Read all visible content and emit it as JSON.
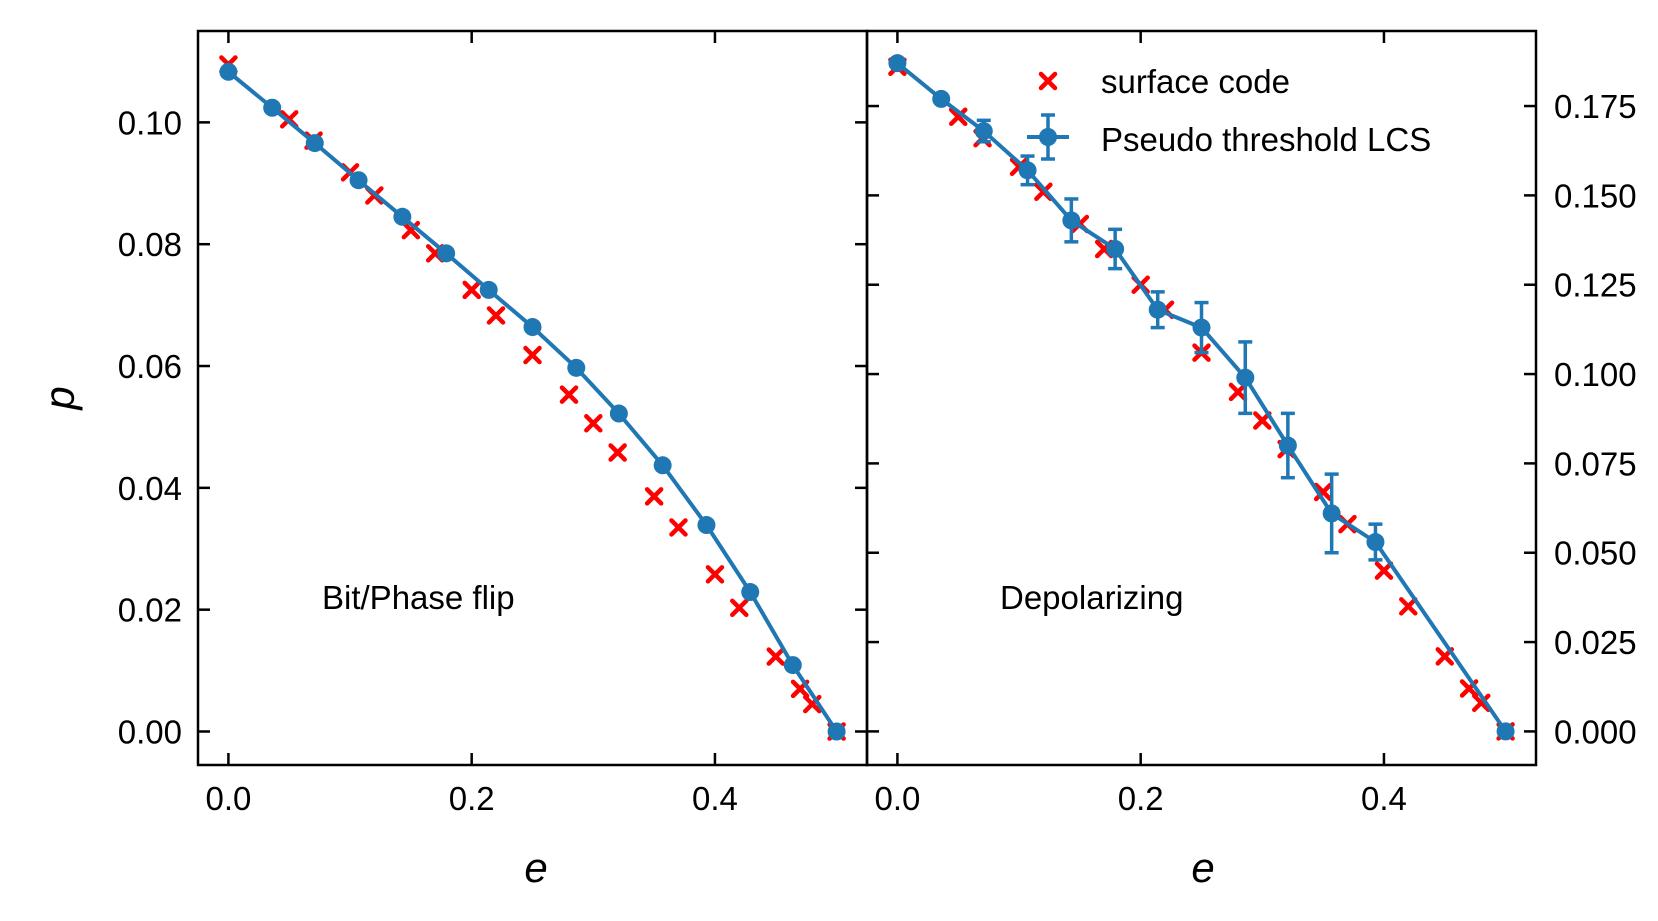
{
  "chart_data": [
    {
      "type": "scatter",
      "panel": "left",
      "annotation": "Bit/Phase flip",
      "xlabel": "e",
      "ylabel": "p",
      "xlim": [
        -0.025,
        0.525
      ],
      "ylim": [
        -0.0055,
        0.115
      ],
      "xticks": [
        0.0,
        0.2,
        0.4
      ],
      "xtick_labels": [
        "0.0",
        "0.2",
        "0.4"
      ],
      "yticks": [
        0.0,
        0.02,
        0.04,
        0.06,
        0.08,
        0.1
      ],
      "ytick_labels": [
        "0.00",
        "0.02",
        "0.04",
        "0.06",
        "0.08",
        "0.10"
      ],
      "series": [
        {
          "name": "surface code",
          "style": "x-marker",
          "color": "#ff0000",
          "x": [
            0.0,
            0.05,
            0.07,
            0.1,
            0.12,
            0.15,
            0.17,
            0.2,
            0.22,
            0.25,
            0.28,
            0.3,
            0.32,
            0.35,
            0.37,
            0.4,
            0.42,
            0.45,
            0.47,
            0.48,
            0.5
          ],
          "y": [
            0.1095,
            0.1005,
            0.097,
            0.0918,
            0.088,
            0.0823,
            0.0785,
            0.0725,
            0.0683,
            0.0618,
            0.0553,
            0.0506,
            0.0458,
            0.0386,
            0.0335,
            0.0258,
            0.0203,
            0.0123,
            0.007,
            0.0045,
            0.0
          ]
        },
        {
          "name": "Pseudo threshold LCS",
          "style": "line-dot",
          "color": "#1f77b4",
          "x": [
            0.0,
            0.036,
            0.071,
            0.107,
            0.143,
            0.179,
            0.214,
            0.25,
            0.286,
            0.321,
            0.357,
            0.393,
            0.429,
            0.464,
            0.5
          ],
          "y": [
            0.1083,
            0.1024,
            0.0966,
            0.0905,
            0.0845,
            0.0785,
            0.0725,
            0.0664,
            0.0597,
            0.0522,
            0.0437,
            0.0339,
            0.0229,
            0.0109,
            0.0
          ]
        }
      ]
    },
    {
      "type": "scatter",
      "panel": "right",
      "annotation": "Depolarizing",
      "xlabel": "e",
      "ylabel": "",
      "xlim": [
        -0.025,
        0.525
      ],
      "ylim": [
        -0.0094,
        0.196
      ],
      "xticks": [
        0.0,
        0.2,
        0.4
      ],
      "xtick_labels": [
        "0.0",
        "0.2",
        "0.4"
      ],
      "yticks": [
        0.0,
        0.025,
        0.05,
        0.075,
        0.1,
        0.125,
        0.15,
        0.175
      ],
      "ytick_labels": [
        "0.000",
        "0.025",
        "0.050",
        "0.075",
        "0.100",
        "0.125",
        "0.150",
        "0.175"
      ],
      "legend_position": "top-right",
      "series": [
        {
          "name": "surface code",
          "style": "x-marker",
          "color": "#ff0000",
          "x": [
            0.0,
            0.05,
            0.07,
            0.1,
            0.12,
            0.15,
            0.17,
            0.2,
            0.22,
            0.25,
            0.28,
            0.3,
            0.32,
            0.35,
            0.37,
            0.4,
            0.42,
            0.45,
            0.47,
            0.48,
            0.5
          ],
          "y": [
            0.186,
            0.172,
            0.166,
            0.158,
            0.151,
            0.142,
            0.135,
            0.125,
            0.118,
            0.106,
            0.095,
            0.087,
            0.079,
            0.067,
            0.058,
            0.045,
            0.035,
            0.021,
            0.012,
            0.008,
            0.0
          ]
        },
        {
          "name": "Pseudo threshold LCS",
          "style": "line-dot-errorbar",
          "color": "#1f77b4",
          "x": [
            0.0,
            0.036,
            0.071,
            0.107,
            0.143,
            0.179,
            0.214,
            0.25,
            0.286,
            0.321,
            0.357,
            0.393,
            0.5
          ],
          "y": [
            0.187,
            0.177,
            0.168,
            0.157,
            0.143,
            0.135,
            0.118,
            0.113,
            0.099,
            0.08,
            0.061,
            0.053,
            0.0
          ],
          "yerr": [
            0.0,
            0.0,
            0.003,
            0.004,
            0.006,
            0.0055,
            0.005,
            0.007,
            0.01,
            0.009,
            0.011,
            0.005,
            0.0
          ]
        }
      ]
    }
  ],
  "legend": {
    "items": [
      "surface code",
      "Pseudo threshold LCS"
    ]
  }
}
